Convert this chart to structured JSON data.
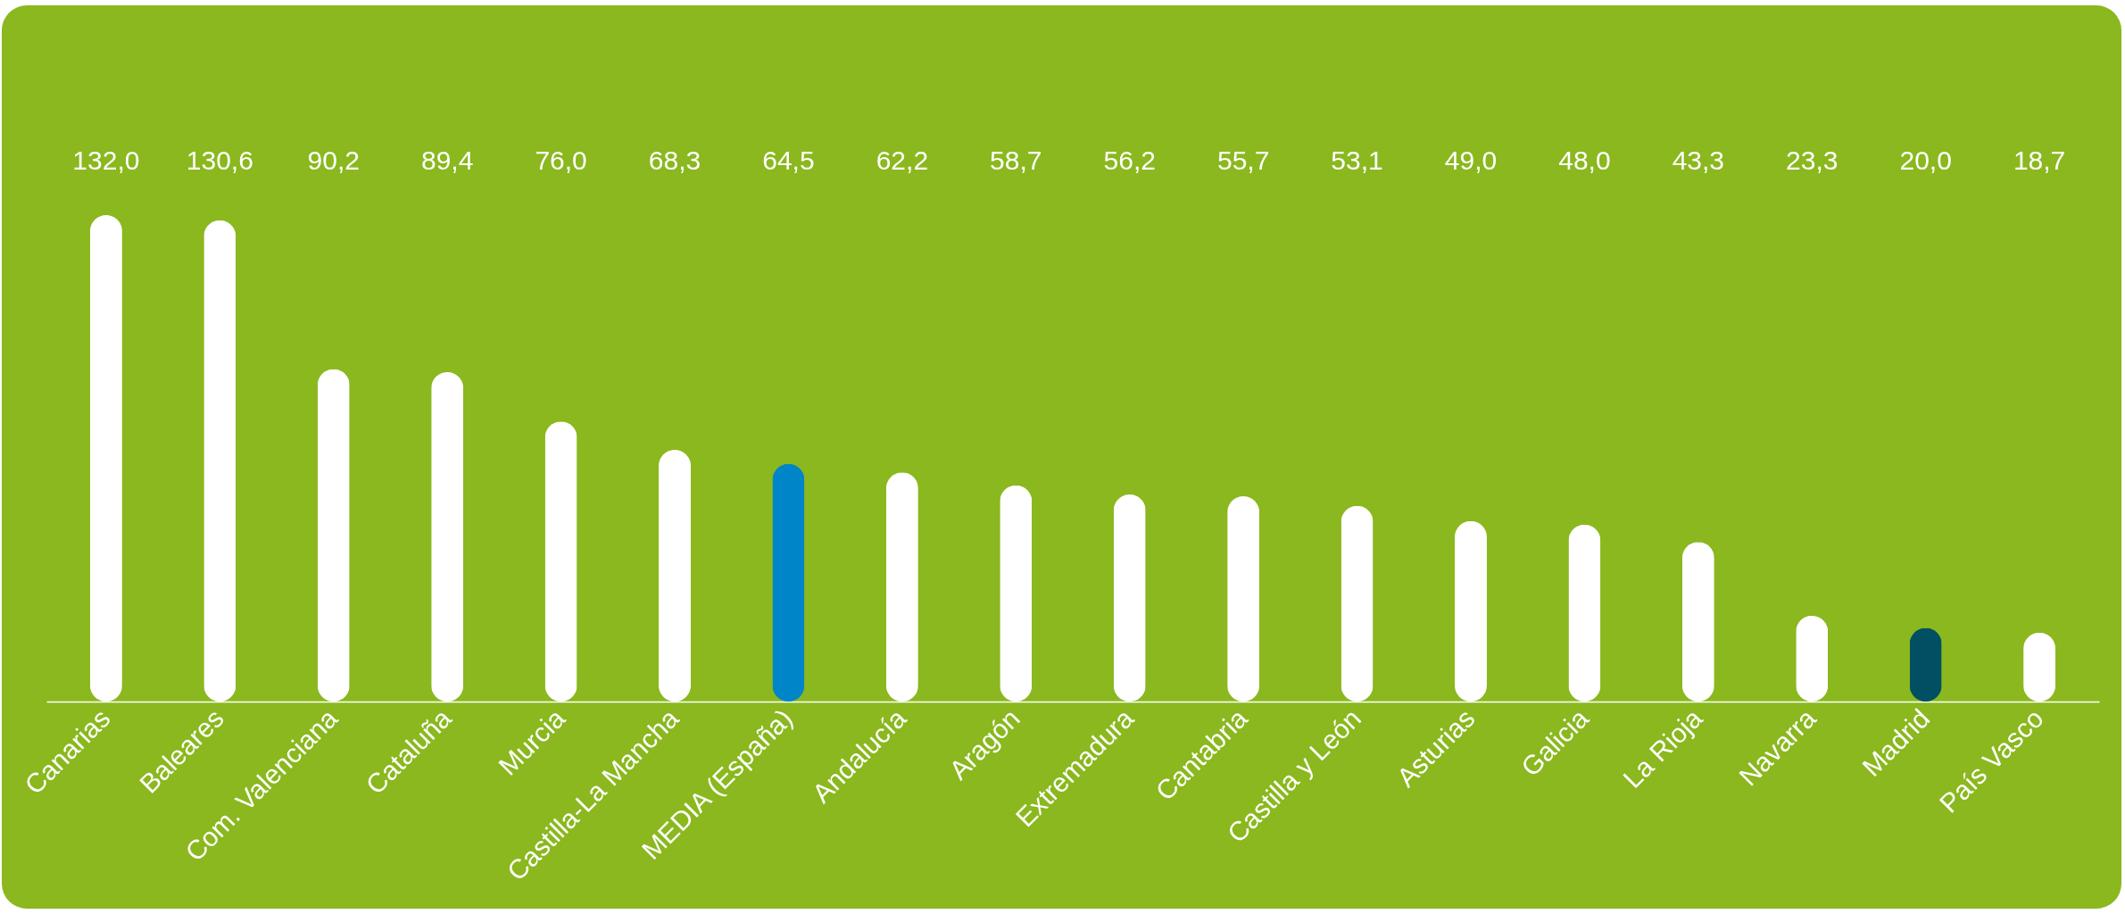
{
  "chart_data": {
    "type": "bar",
    "categories": [
      "Canarias",
      "Baleares",
      "Com. Valenciana",
      "Cataluña",
      "Murcia",
      "Castilla-La Mancha",
      "MEDIA (España)",
      "Andalucía",
      "Aragón",
      "Extremadura",
      "Cantabria",
      "Castilla y León",
      "Asturias",
      "Galicia",
      "La Rioja",
      "Navarra",
      "Madrid",
      "País Vasco"
    ],
    "values": [
      132.0,
      130.6,
      90.2,
      89.4,
      76.0,
      68.3,
      64.5,
      62.2,
      58.7,
      56.2,
      55.7,
      53.1,
      49.0,
      48.0,
      43.3,
      23.3,
      20.0,
      18.7
    ],
    "value_labels": [
      "132,0",
      "130,6",
      "90,2",
      "89,4",
      "76,0",
      "68,3",
      "64,5",
      "62,2",
      "58,7",
      "56,2",
      "55,7",
      "53,1",
      "49,0",
      "48,0",
      "43,3",
      "23,3",
      "20,0",
      "18,7"
    ],
    "colors": [
      "#ffffff",
      "#ffffff",
      "#ffffff",
      "#ffffff",
      "#ffffff",
      "#ffffff",
      "#0085c8",
      "#ffffff",
      "#ffffff",
      "#ffffff",
      "#ffffff",
      "#ffffff",
      "#ffffff",
      "#ffffff",
      "#ffffff",
      "#ffffff",
      "#004f63",
      "#ffffff"
    ],
    "grid": false
  }
}
